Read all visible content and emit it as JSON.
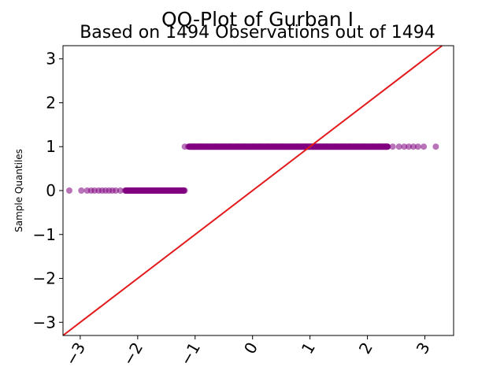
{
  "chart_data": {
    "type": "scatter",
    "title": "QQ-Plot of Gurban I",
    "subtitle": "Based on 1494 Observations out of 1494",
    "xlabel": "",
    "ylabel": "Sample Quantiles",
    "xlim": [
      -3.3,
      3.5
    ],
    "ylim": [
      -3.3,
      3.3
    ],
    "x_ticks": [
      -3,
      -2,
      -1,
      0,
      1,
      2,
      3
    ],
    "x_tick_labels": [
      "−3",
      "−2",
      "−1",
      "0",
      "1",
      "2",
      "3"
    ],
    "y_ticks": [
      -3,
      -2,
      -1,
      0,
      1,
      2,
      3
    ],
    "y_tick_labels": [
      "−3",
      "−2",
      "−1",
      "0",
      "1",
      "2",
      "3"
    ],
    "grid": false,
    "point_color": "#800080",
    "line_color": "#e31a1c",
    "reference_line": {
      "slope": 1,
      "intercept": 0
    },
    "series": [
      {
        "values_y": 0,
        "x": [
          -3.19,
          -2.98,
          -2.88,
          -2.81,
          -2.75,
          -2.68,
          -2.62,
          -2.56,
          -2.5,
          -2.44,
          -2.38,
          -2.3,
          -2.22,
          -2.14,
          -2.05,
          -1.96,
          -1.86,
          -1.76,
          -1.66,
          -1.56,
          -1.46,
          -1.38,
          -1.3,
          -1.24,
          -1.2,
          -1.18
        ]
      },
      {
        "values_y": 1,
        "x": [
          -1.18,
          -1.12,
          -1.02,
          -0.9,
          -0.78,
          -0.65,
          -0.52,
          -0.39,
          -0.26,
          -0.13,
          0.0,
          0.13,
          0.26,
          0.39,
          0.52,
          0.65,
          0.78,
          0.91,
          1.04,
          1.17,
          1.3,
          1.43,
          1.56,
          1.69,
          1.82,
          1.95,
          2.08,
          2.2,
          2.32,
          2.44,
          2.55,
          2.64,
          2.72,
          2.8,
          2.88,
          2.98,
          3.19
        ]
      }
    ]
  }
}
